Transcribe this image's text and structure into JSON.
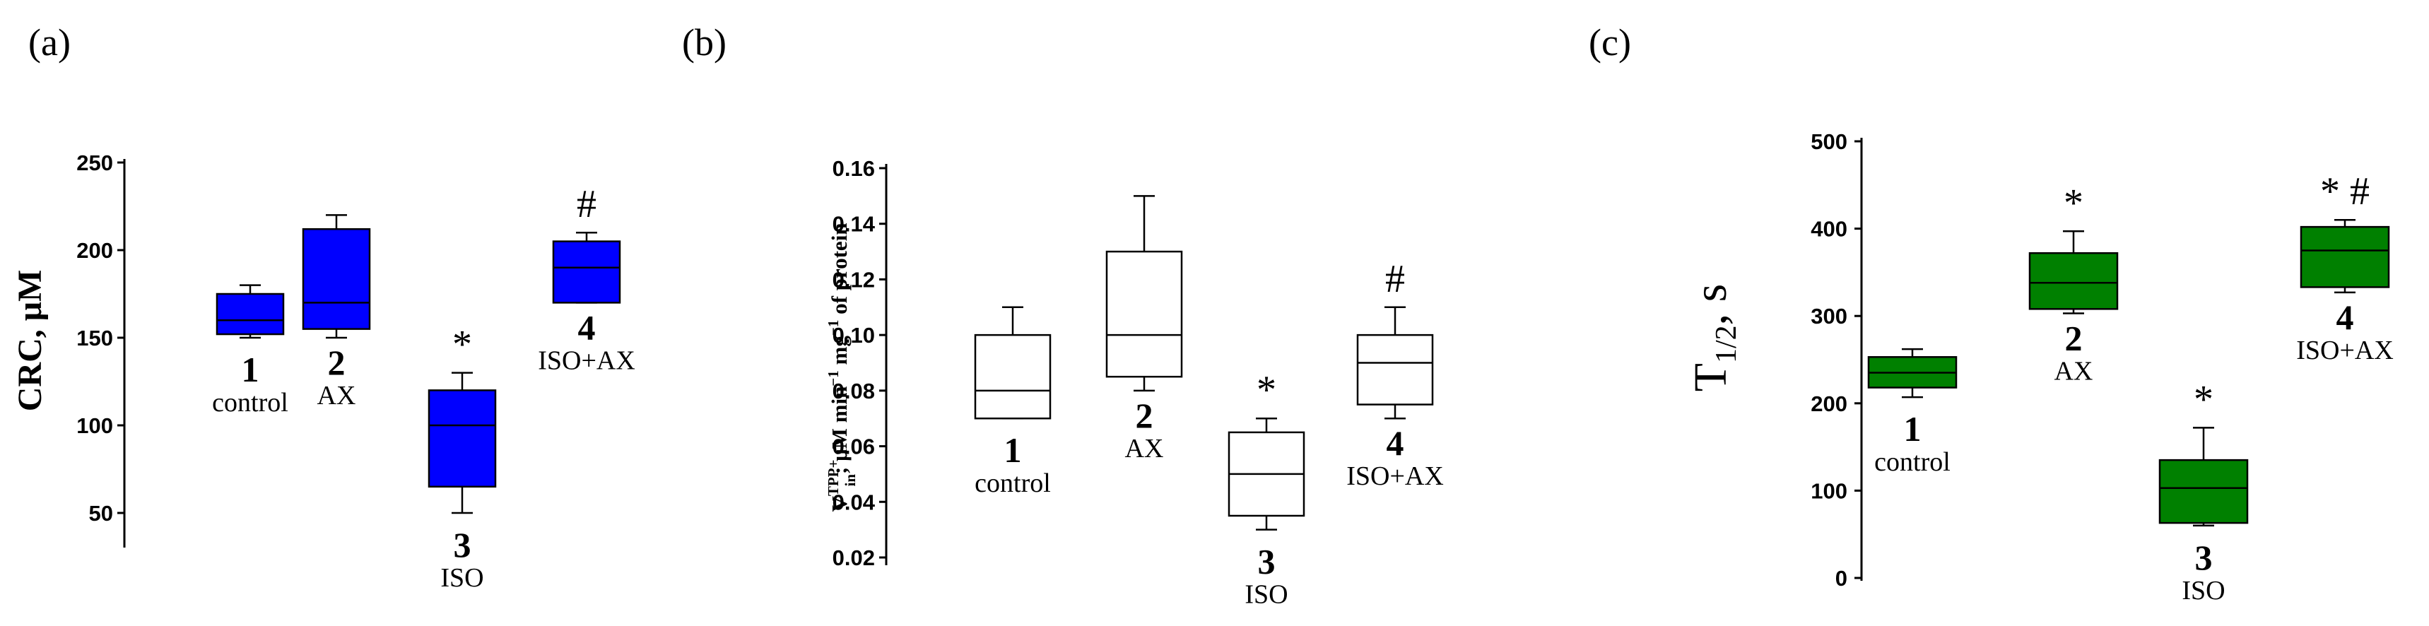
{
  "chart_data": [
    {
      "type": "box",
      "panel_label": "(a)",
      "ylabel": "CRC, μM",
      "ylim": [
        30,
        260
      ],
      "yticks": [
        50,
        100,
        150,
        200,
        250
      ],
      "box_color": "#0000ff",
      "groups": [
        {
          "number": "1",
          "label": "control",
          "whisker_low": 150,
          "q1": 152,
          "median": 160,
          "q3": 175,
          "whisker_high": 180,
          "annotation": ""
        },
        {
          "number": "2",
          "label": "AX",
          "whisker_low": 150,
          "q1": 155,
          "median": 170,
          "q3": 212,
          "whisker_high": 220,
          "annotation": ""
        },
        {
          "number": "3",
          "label": "ISO",
          "whisker_low": 50,
          "q1": 65,
          "median": 100,
          "q3": 120,
          "whisker_high": 130,
          "annotation": "*"
        },
        {
          "number": "4",
          "label": "ISO+AX",
          "whisker_low": 170,
          "q1": 170,
          "median": 190,
          "q3": 205,
          "whisker_high": 210,
          "annotation": "#"
        }
      ]
    },
    {
      "type": "box",
      "panel_label": "(b)",
      "ylabel": {
        "main": "V",
        "sup": "TPP+",
        "sub": "in",
        "rest": "; μM min",
        "rest_sup": "−1",
        "rest2": " mg",
        "rest2_sup": "−1",
        "tail": " of protein"
      },
      "ylim": [
        0.02,
        0.16
      ],
      "yticks": [
        "0.02",
        "0.04",
        "0.06",
        "0.08",
        "0.10",
        "0.12",
        "0.14",
        "0.16"
      ],
      "box_color": "#ffffff",
      "groups": [
        {
          "number": "1",
          "label": "control",
          "whisker_low": 0.07,
          "q1": 0.07,
          "median": 0.08,
          "q3": 0.1,
          "whisker_high": 0.11,
          "annotation": ""
        },
        {
          "number": "2",
          "label": "AX",
          "whisker_low": 0.08,
          "q1": 0.085,
          "median": 0.1,
          "q3": 0.13,
          "whisker_high": 0.15,
          "annotation": ""
        },
        {
          "number": "3",
          "label": "ISO",
          "whisker_low": 0.03,
          "q1": 0.035,
          "median": 0.05,
          "q3": 0.065,
          "whisker_high": 0.07,
          "annotation": "*"
        },
        {
          "number": "4",
          "label": "ISO+AX",
          "whisker_low": 0.07,
          "q1": 0.075,
          "median": 0.09,
          "q3": 0.1,
          "whisker_high": 0.11,
          "annotation": "#"
        }
      ]
    },
    {
      "type": "box",
      "panel_label": "(c)",
      "ylabel": {
        "main": "T",
        "sub": "1/2",
        "tail": ", s"
      },
      "ylim": [
        0,
        500
      ],
      "yticks": [
        0,
        100,
        200,
        300,
        400,
        500
      ],
      "box_color": "#008000",
      "groups": [
        {
          "number": "1",
          "label": "control",
          "whisker_low": 207,
          "q1": 218,
          "median": 235,
          "q3": 253,
          "whisker_high": 262,
          "annotation": ""
        },
        {
          "number": "2",
          "label": "AX",
          "whisker_low": 303,
          "q1": 308,
          "median": 338,
          "q3": 372,
          "whisker_high": 397,
          "annotation": "*"
        },
        {
          "number": "3",
          "label": "ISO",
          "whisker_low": 60,
          "q1": 63,
          "median": 103,
          "q3": 135,
          "whisker_high": 172,
          "annotation": "*"
        },
        {
          "number": "4",
          "label": "ISO+AX",
          "whisker_low": 327,
          "q1": 333,
          "median": 375,
          "q3": 402,
          "whisker_high": 410,
          "annotation": "* #"
        }
      ]
    }
  ]
}
